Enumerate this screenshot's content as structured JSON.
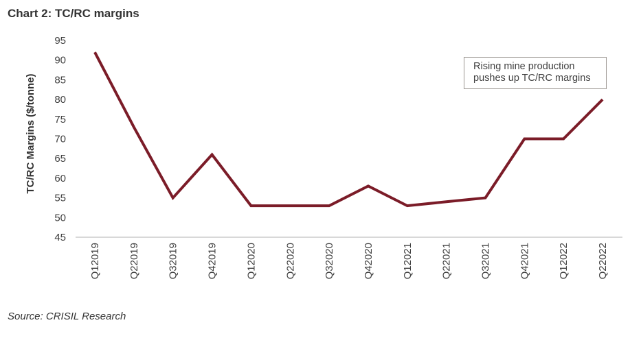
{
  "title": "Chart 2: TC/RC margins",
  "source": "Source: CRISIL Research",
  "annotation": {
    "line1": "Rising mine production",
    "line2": "pushes up TC/RC margins"
  },
  "colors": {
    "line": "#7b1c28",
    "axis": "#b0b0b0",
    "text": "#404040"
  },
  "chart_data": {
    "type": "line",
    "title": "Chart 2: TC/RC margins",
    "xlabel": "",
    "ylabel": "TC/RC Margins ($/tonne)",
    "ylim": [
      45,
      95
    ],
    "yticks": [
      45,
      50,
      55,
      60,
      65,
      70,
      75,
      80,
      85,
      90,
      95
    ],
    "grid": false,
    "legend": null,
    "categories": [
      "Q12019",
      "Q22019",
      "Q32019",
      "Q42019",
      "Q12020",
      "Q22020",
      "Q32020",
      "Q42020",
      "Q12021",
      "Q22021",
      "Q32021",
      "Q42021",
      "Q12022",
      "Q22022"
    ],
    "series": [
      {
        "name": "TC/RC margins",
        "values": [
          92,
          73,
          55,
          66,
          53,
          53,
          53,
          58,
          53,
          54,
          55,
          70,
          70,
          80
        ]
      }
    ],
    "annotations": [
      "Rising mine production pushes up TC/RC margins"
    ]
  }
}
